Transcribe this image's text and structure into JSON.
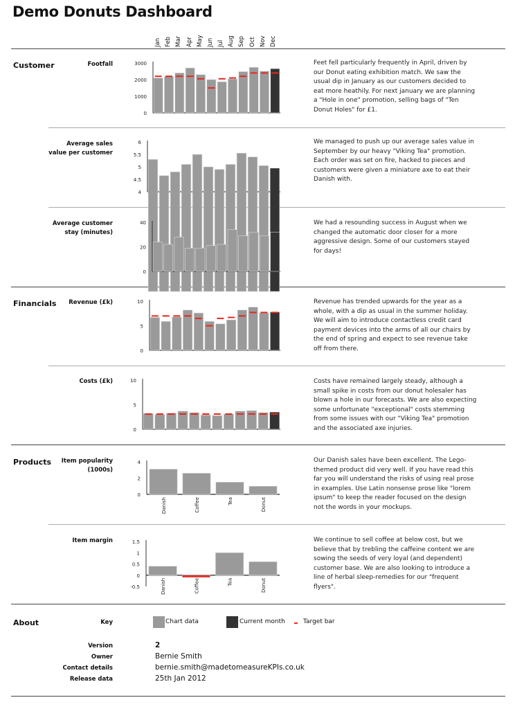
{
  "title": "Demo Donuts Dashboard",
  "months": [
    "Jan",
    "Feb",
    "Mar",
    "Apr",
    "May",
    "Jun",
    "Jul",
    "Aug",
    "Sep",
    "Oct",
    "Nov",
    "Dec"
  ],
  "colors": {
    "chart_data": "#9a9a9a",
    "current_month": "#333333",
    "target": "#e8261f",
    "negative": "#e8261f"
  },
  "sections": {
    "customer": "Customer",
    "financials": "Financials",
    "products": "Products",
    "about": "About"
  },
  "comments": {
    "footfall": "Feet fell particularly frequently in April, driven by our Donut eating exhibition match. We saw the usual dip in January as our customers decided to eat more heathily. For next january we are planning a \"Hole in one\" promotion, selling bags of \"Ten Donut Holes\" for £1.",
    "avg_sales": "We managed to push up our average sales value in September by our heavy \"Viking Tea\" promotion. Each order was set on fire, hacked to pieces and customers were given a miniature axe to eat their Danish with.",
    "stay": "We had a resounding success in August when we changed the automatic door closer for a more aggressive design. Some of our customers stayed for days!",
    "revenue": "Revenue has trended upwards for the year as a whole, with a dip as usual in the summer holiday. We will aim to introduce contactless credit card payment devices into the arms of all our chairs by the end of spring and expect to see revenue take off from there.",
    "costs": "Costs have remained largely steady, although a small spike in costs from our donut holesaler has blown a hole in our forecasts. We are also expecting some unfortunate \"exceptional\" costs stemming from some issues with our \"Viking Tea\" promotion and the associated axe injuries.",
    "popularity": "Our Danish sales have been excellent. The Lego-themed product did very well. If you have read this far you will understand the risks of using real prose in examples. Use Latin nonsense prose like \"lorem ipsum\" to keep the reader focused on the design not the words in your mockups.",
    "margin": "We continue to sell coffee at below cost, but we believe that by trebling the caffeine content we are sowing the seeds of very loyal (and dependent) customer base. We are also looking to introduce a line of herbal sleep-remedies for our \"frequent flyers\"."
  },
  "about": {
    "key_label": "Key",
    "key_items": [
      "Chart data",
      "Current month",
      "Target bar"
    ],
    "version_label": "Version",
    "version": "2",
    "owner_label": "Owner",
    "owner": "Bernie Smith",
    "contact_label": "Contact details",
    "contact": "bernie.smith@madetomeasureKPIs.co.uk",
    "release_label": "Release data",
    "release": "25th Jan 2012"
  },
  "chart_data": [
    {
      "id": "footfall",
      "type": "bar",
      "title": "Footfall",
      "categories": [
        "Jan",
        "Feb",
        "Mar",
        "Apr",
        "May",
        "Jun",
        "Jul",
        "Aug",
        "Sep",
        "Oct",
        "Nov",
        "Dec"
      ],
      "values": [
        2100,
        2180,
        2400,
        2700,
        2300,
        2000,
        1870,
        2040,
        2480,
        2740,
        2510,
        2660
      ],
      "targets": [
        2200,
        2200,
        2200,
        2200,
        2050,
        1500,
        2050,
        2100,
        2200,
        2400,
        2400,
        2400
      ],
      "ylim": [
        0,
        3000
      ],
      "yticks": [
        0,
        1000,
        2000,
        3000
      ],
      "current_index": 11
    },
    {
      "id": "avg_sales",
      "type": "bar",
      "title": "Average sales value per customer",
      "categories": [
        "Jan",
        "Feb",
        "Mar",
        "Apr",
        "May",
        "Jun",
        "Jul",
        "Aug",
        "Sep",
        "Oct",
        "Nov",
        "Dec"
      ],
      "values": [
        5.3,
        4.65,
        4.8,
        5.1,
        5.5,
        5.0,
        4.9,
        5.1,
        5.55,
        5.4,
        5.05,
        4.95
      ],
      "ylim": [
        4,
        6
      ],
      "yticks": [
        4,
        4.5,
        5,
        5.5,
        6
      ],
      "current_index": 11
    },
    {
      "id": "stay",
      "type": "bar",
      "title": "Average customer stay (minutes)",
      "categories": [
        "Jan",
        "Feb",
        "Mar",
        "Apr",
        "May",
        "Jun",
        "Jul",
        "Aug",
        "Sep",
        "Oct",
        "Nov",
        "Dec"
      ],
      "values": [
        24,
        22,
        28,
        19,
        19,
        21,
        22,
        34,
        29,
        32,
        29,
        32
      ],
      "ylim": [
        0,
        40
      ],
      "yticks": [
        0,
        20,
        40
      ],
      "current_index": 11
    },
    {
      "id": "revenue",
      "type": "bar",
      "title": "Revenue (£k)",
      "categories": [
        "Jan",
        "Feb",
        "Mar",
        "Apr",
        "May",
        "Jun",
        "Jul",
        "Aug",
        "Sep",
        "Oct",
        "Nov",
        "Dec"
      ],
      "values": [
        6.7,
        5.9,
        6.8,
        8.2,
        7.6,
        5.9,
        5.4,
        6.2,
        8.2,
        8.8,
        7.6,
        7.8
      ],
      "targets": [
        7,
        7,
        7,
        7,
        6.5,
        5,
        6.5,
        6.7,
        7,
        7.7,
        7.7,
        7.7
      ],
      "ylim": [
        0,
        10
      ],
      "yticks": [
        0,
        5,
        10
      ],
      "current_index": 11
    },
    {
      "id": "costs",
      "type": "bar",
      "title": "Costs (£k)",
      "categories": [
        "Jan",
        "Feb",
        "Mar",
        "Apr",
        "May",
        "Jun",
        "Jul",
        "Aug",
        "Sep",
        "Oct",
        "Nov",
        "Dec"
      ],
      "values": [
        3.2,
        3.0,
        3.3,
        3.7,
        3.4,
        2.9,
        2.8,
        3.1,
        3.7,
        3.8,
        3.4,
        3.5
      ],
      "targets": [
        3.1,
        3.1,
        3.1,
        3.1,
        3.1,
        3.1,
        3.1,
        3.1,
        3.1,
        3.1,
        3.1,
        3.1
      ],
      "ylim": [
        0,
        10
      ],
      "yticks": [
        0,
        5,
        10
      ],
      "current_index": 11
    },
    {
      "id": "popularity",
      "type": "bar",
      "title": "Item popularity (1000s)",
      "categories": [
        "Danish",
        "Coffee",
        "Tea",
        "Donut"
      ],
      "values": [
        3.1,
        2.6,
        1.5,
        1.0
      ],
      "ylim": [
        0,
        4
      ],
      "yticks": [
        0,
        2,
        4
      ]
    },
    {
      "id": "margin",
      "type": "bar",
      "title": "Item margin",
      "categories": [
        "Danish",
        "Coffee",
        "Tea",
        "Donut"
      ],
      "values": [
        0.4,
        -0.1,
        1.0,
        0.6
      ],
      "ylim": [
        -0.5,
        1.5
      ],
      "yticks": [
        -0.5,
        0,
        0.5,
        1,
        1.5
      ]
    }
  ]
}
